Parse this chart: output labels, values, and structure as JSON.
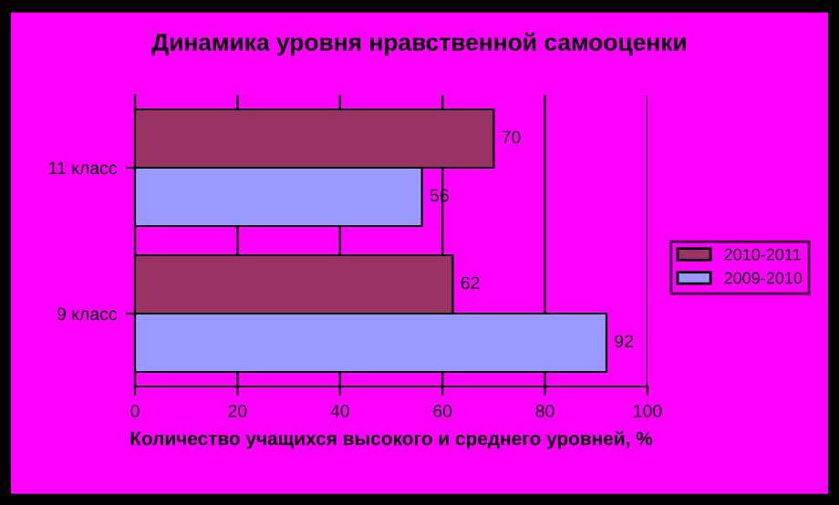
{
  "chart_data": {
    "type": "bar",
    "orientation": "horizontal",
    "title": "Динамика уровня нравственной самооценки",
    "xlabel": "Количество учащихся высокого и среднего уровней, %",
    "categories": [
      "11 класс",
      "9 класс"
    ],
    "series": [
      {
        "name": "2010-2011",
        "color": "#993366",
        "values": [
          70,
          62
        ]
      },
      {
        "name": "2009-2010",
        "color": "#9999ff",
        "values": [
          56,
          92
        ]
      }
    ],
    "xlim": [
      0,
      100
    ],
    "xticks": [
      0,
      20,
      40,
      60,
      80,
      100
    ],
    "grid": "x",
    "legend": "right",
    "data_labels": true
  }
}
